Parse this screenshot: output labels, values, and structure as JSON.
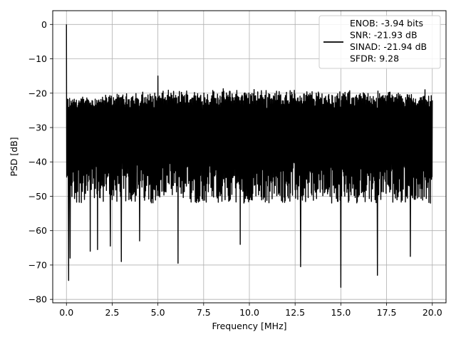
{
  "chart_data": {
    "type": "line",
    "title": "",
    "xlabel": "Frequency [MHz]",
    "ylabel": "PSD [dB]",
    "xlim": [
      -0.75,
      20.75
    ],
    "ylim": [
      -81,
      4
    ],
    "xticks": [
      0.0,
      2.5,
      5.0,
      7.5,
      10.0,
      12.5,
      15.0,
      17.5,
      20.0
    ],
    "xtick_labels": [
      "0.0",
      "2.5",
      "5.0",
      "7.5",
      "10.0",
      "12.5",
      "15.0",
      "17.5",
      "20.0"
    ],
    "yticks": [
      0,
      -10,
      -20,
      -30,
      -40,
      -50,
      -60,
      -70,
      -80
    ],
    "ytick_labels": [
      "0",
      "−10",
      "−20",
      "−30",
      "−40",
      "−50",
      "−60",
      "−70",
      "−80"
    ],
    "grid": true,
    "legend_position": "top-right",
    "legend_entries": [
      "ENOB: -3.94 bits",
      "SNR: -21.93 dB",
      "SINAD: -21.94 dB",
      "SFDR: 9.28"
    ],
    "series": [
      {
        "color": "#000000",
        "description": "dense noise-floor spectrum",
        "x_range": [
          0,
          20
        ],
        "upper_envelope": [
          {
            "x": 0.0,
            "y": -22
          },
          {
            "x": 2.5,
            "y": -21
          },
          {
            "x": 5.0,
            "y": -20
          },
          {
            "x": 7.5,
            "y": -19.5
          },
          {
            "x": 10.0,
            "y": -19.5
          },
          {
            "x": 12.5,
            "y": -19.5
          },
          {
            "x": 15.0,
            "y": -20
          },
          {
            "x": 17.5,
            "y": -20
          },
          {
            "x": 20.0,
            "y": -21
          }
        ],
        "body_range": [
          -52,
          -22
        ],
        "peaks": [
          {
            "x": 0.0,
            "y": 0
          },
          {
            "x": 5.0,
            "y": -15
          },
          {
            "x": 19.6,
            "y": -19
          }
        ],
        "dips": [
          {
            "x": 0.12,
            "y": -74.5
          },
          {
            "x": 0.2,
            "y": -68
          },
          {
            "x": 1.3,
            "y": -66
          },
          {
            "x": 3.0,
            "y": -69
          },
          {
            "x": 6.1,
            "y": -69.5
          },
          {
            "x": 12.8,
            "y": -70.5
          },
          {
            "x": 15.0,
            "y": -76.5
          },
          {
            "x": 17.0,
            "y": -73
          },
          {
            "x": 18.8,
            "y": -67.5
          },
          {
            "x": 9.5,
            "y": -64
          },
          {
            "x": 4.0,
            "y": -63
          },
          {
            "x": 1.7,
            "y": -65.5
          },
          {
            "x": 2.4,
            "y": -64.5
          }
        ]
      }
    ]
  }
}
